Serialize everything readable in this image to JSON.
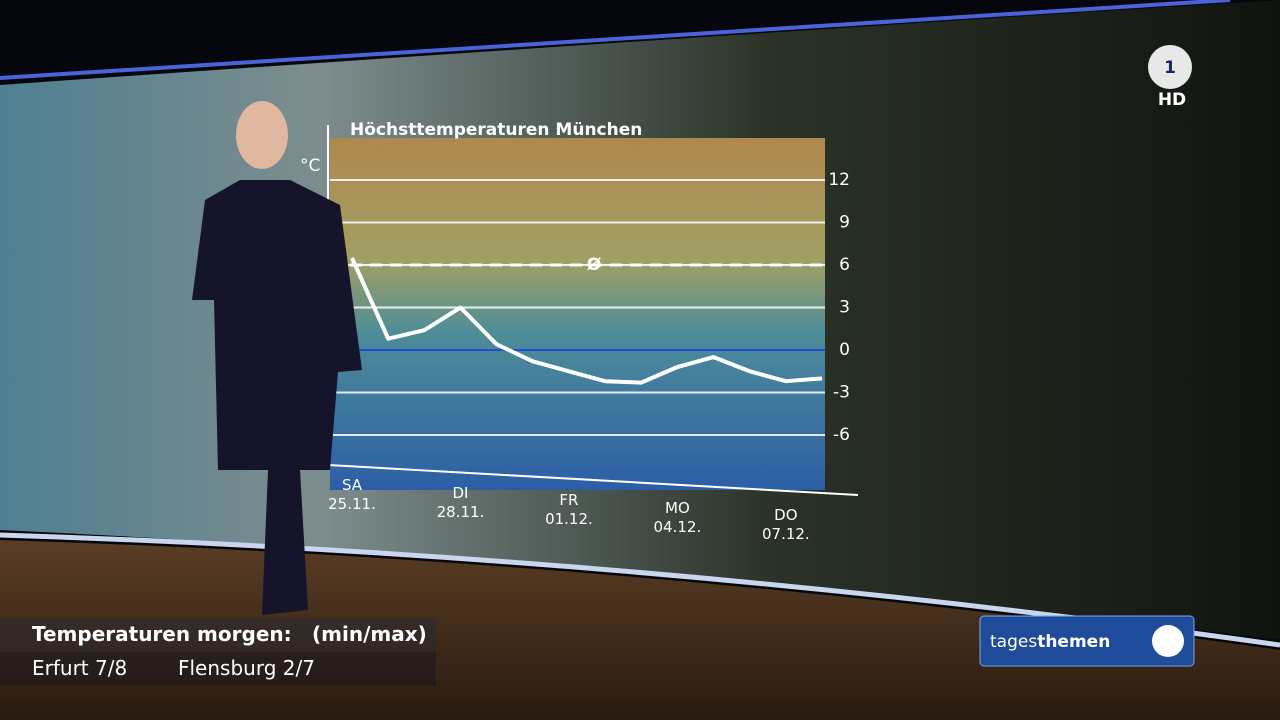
{
  "chart_data": {
    "type": "line",
    "title": "Höchsttemperaturen München",
    "y_label": "°C",
    "categories": [
      "SA\n25.11.",
      null,
      null,
      "DI\n28.11.",
      null,
      null,
      "FR\n01.12.",
      null,
      null,
      "MO\n04.12.",
      null,
      null,
      "DO\n07.12.",
      null
    ],
    "series": [
      {
        "name": "Höchsttemperatur",
        "color": "#ffffff",
        "values": [
          6.5,
          0.8,
          1.4,
          3,
          0.4,
          -0.8,
          -1.5,
          -2.2,
          -2.3,
          -1.2,
          -0.5,
          -1.5,
          -2.2,
          -2
        ]
      }
    ],
    "average": {
      "value": 6,
      "label": "Ø"
    },
    "zero_line_color": "#1f4fd6",
    "ylim": [
      -10,
      15
    ],
    "yticks": [
      12,
      9,
      6,
      3,
      0,
      -3,
      -6
    ],
    "grid": true
  },
  "logo": {
    "channel": "1",
    "quality": "HD"
  },
  "ticker": {
    "heading": "Temperaturen morgen:",
    "unit": "(min/max)",
    "items": [
      "Erfurt 7/8",
      "Flensburg 2/7"
    ]
  },
  "brand": {
    "light": "tages",
    "bold": "themen"
  }
}
